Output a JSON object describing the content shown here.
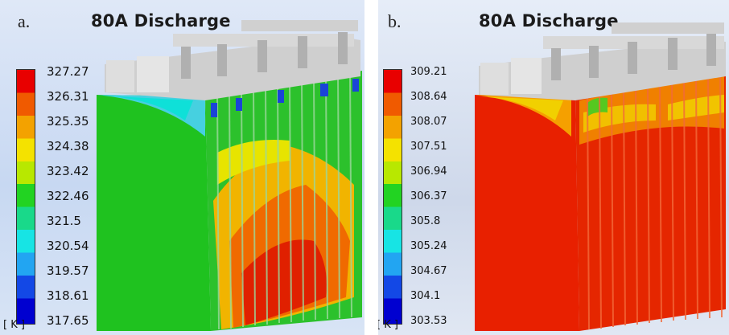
{
  "panels": [
    {
      "letter": "a.",
      "title": "80A Discharge",
      "unit": "[ K ]",
      "legend": [
        "327.27",
        "326.31",
        "325.35",
        "324.38",
        "323.42",
        "322.46",
        "321.5",
        "320.54",
        "319.57",
        "318.61",
        "317.65"
      ]
    },
    {
      "letter": "b.",
      "title": "80A Discharge",
      "unit": "[ K ]",
      "legend": [
        "309.21",
        "308.64",
        "308.07",
        "307.51",
        "306.94",
        "306.37",
        "305.8",
        "305.24",
        "304.67",
        "304.1",
        "303.53"
      ]
    }
  ]
}
